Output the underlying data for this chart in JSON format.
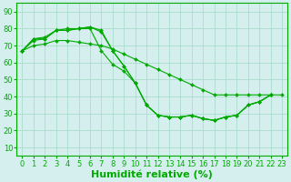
{
  "background_color": "#d5efef",
  "grid_color": "#aaddcc",
  "line_color": "#00aa00",
  "xlabel": "Humidité relative (%)",
  "xlabel_fontsize": 8,
  "tick_fontsize": 6,
  "xlim": [
    -0.5,
    23.5
  ],
  "ylim": [
    5,
    95
  ],
  "yticks": [
    10,
    20,
    30,
    40,
    50,
    60,
    70,
    80,
    90
  ],
  "xticks": [
    0,
    1,
    2,
    3,
    4,
    5,
    6,
    7,
    8,
    9,
    10,
    11,
    12,
    13,
    14,
    15,
    16,
    17,
    18,
    19,
    20,
    21,
    22,
    23
  ],
  "series": [
    [
      67,
      74,
      74,
      79,
      79,
      80,
      81,
      79,
      67,
      58,
      48,
      35,
      29,
      28,
      28,
      29,
      27,
      26,
      28,
      29,
      35,
      37,
      41,
      null
    ],
    [
      67,
      74,
      75,
      79,
      80,
      80,
      81,
      78,
      67,
      58,
      48,
      35,
      29,
      28,
      28,
      29,
      27,
      26,
      28,
      29,
      35,
      37,
      41,
      null
    ],
    [
      67,
      73,
      74,
      79,
      79,
      80,
      80,
      67,
      59,
      55,
      48,
      35,
      29,
      28,
      28,
      29,
      27,
      26,
      28,
      29,
      35,
      37,
      41,
      null
    ],
    [
      67,
      70,
      71,
      73,
      73,
      72,
      71,
      70,
      68,
      65,
      62,
      59,
      56,
      53,
      50,
      47,
      44,
      41,
      41,
      41,
      41,
      41,
      41,
      41
    ]
  ]
}
